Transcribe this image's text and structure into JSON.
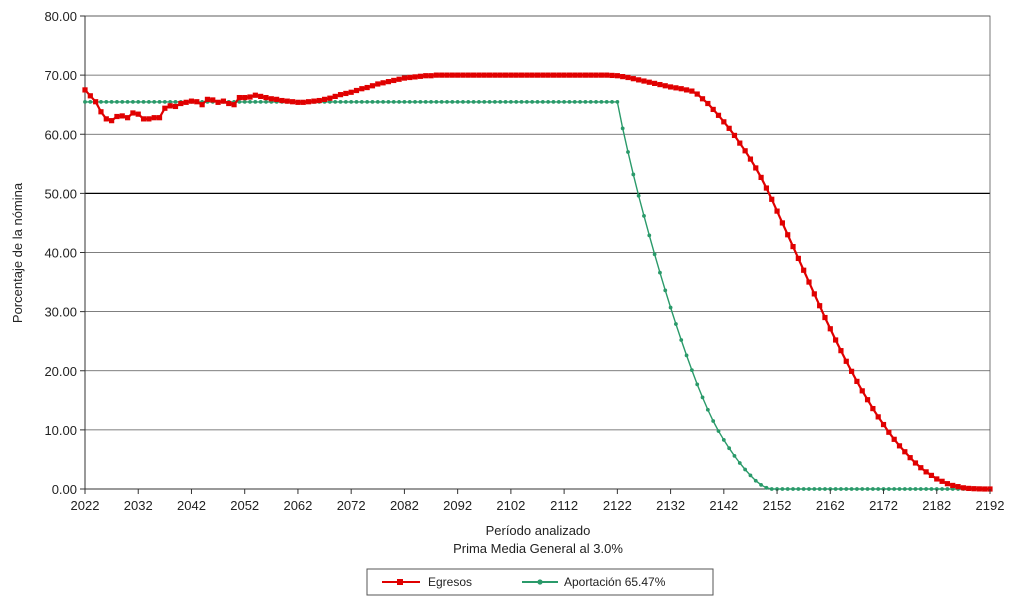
{
  "chart_data": {
    "type": "line",
    "title": "",
    "xlabel": "Período analizado",
    "subtitle": "Prima Media General al 3.0%",
    "ylabel": "Porcentaje de la nómina",
    "xlim": [
      2022,
      2192
    ],
    "ylim": [
      0,
      80
    ],
    "x_ticks": [
      "2022",
      "2032",
      "2042",
      "2052",
      "2062",
      "2072",
      "2082",
      "2092",
      "2102",
      "2112",
      "2122",
      "2132",
      "2142",
      "2152",
      "2162",
      "2172",
      "2182",
      "2192"
    ],
    "y_ticks": [
      "0.00",
      "10.00",
      "20.00",
      "30.00",
      "40.00",
      "50.00",
      "60.00",
      "70.00",
      "80.00"
    ],
    "grid": "horizontal",
    "legend_position": "bottom",
    "series": [
      {
        "name": "Egresos",
        "color": "#e00000",
        "marker": "square",
        "points": [
          [
            2022,
            67.5
          ],
          [
            2023,
            66.5
          ],
          [
            2024,
            65.5
          ],
          [
            2025,
            63.8
          ],
          [
            2026,
            62.6
          ],
          [
            2027,
            62.3
          ],
          [
            2028,
            63.0
          ],
          [
            2029,
            63.1
          ],
          [
            2030,
            62.8
          ],
          [
            2031,
            63.6
          ],
          [
            2032,
            63.4
          ],
          [
            2033,
            62.6
          ],
          [
            2034,
            62.6
          ],
          [
            2035,
            62.8
          ],
          [
            2036,
            62.8
          ],
          [
            2037,
            64.4
          ],
          [
            2038,
            64.8
          ],
          [
            2039,
            64.7
          ],
          [
            2040,
            65.2
          ],
          [
            2041,
            65.4
          ],
          [
            2042,
            65.6
          ],
          [
            2043,
            65.5
          ],
          [
            2044,
            65.0
          ],
          [
            2045,
            65.9
          ],
          [
            2046,
            65.8
          ],
          [
            2047,
            65.4
          ],
          [
            2048,
            65.6
          ],
          [
            2049,
            65.2
          ],
          [
            2050,
            65.0
          ],
          [
            2051,
            66.2
          ],
          [
            2052,
            66.2
          ],
          [
            2053,
            66.3
          ],
          [
            2054,
            66.6
          ],
          [
            2055,
            66.4
          ],
          [
            2056,
            66.2
          ],
          [
            2057,
            66.0
          ],
          [
            2058,
            65.9
          ],
          [
            2059,
            65.7
          ],
          [
            2060,
            65.6
          ],
          [
            2061,
            65.5
          ],
          [
            2062,
            65.4
          ],
          [
            2063,
            65.4
          ],
          [
            2064,
            65.5
          ],
          [
            2065,
            65.6
          ],
          [
            2066,
            65.7
          ],
          [
            2067,
            65.9
          ],
          [
            2068,
            66.1
          ],
          [
            2069,
            66.4
          ],
          [
            2070,
            66.7
          ],
          [
            2071,
            66.9
          ],
          [
            2072,
            67.1
          ],
          [
            2073,
            67.4
          ],
          [
            2074,
            67.7
          ],
          [
            2075,
            67.9
          ],
          [
            2076,
            68.2
          ],
          [
            2077,
            68.5
          ],
          [
            2078,
            68.7
          ],
          [
            2079,
            68.9
          ],
          [
            2080,
            69.1
          ],
          [
            2081,
            69.3
          ],
          [
            2082,
            69.5
          ],
          [
            2083,
            69.6
          ],
          [
            2084,
            69.7
          ],
          [
            2085,
            69.8
          ],
          [
            2086,
            69.9
          ],
          [
            2087,
            69.9
          ],
          [
            2088,
            70.0
          ],
          [
            2089,
            70.0
          ],
          [
            2090,
            70.0
          ],
          [
            2092,
            70.0
          ],
          [
            2096,
            70.0
          ],
          [
            2100,
            70.0
          ],
          [
            2104,
            70.0
          ],
          [
            2108,
            70.0
          ],
          [
            2112,
            70.0
          ],
          [
            2116,
            70.0
          ],
          [
            2120,
            70.0
          ],
          [
            2122,
            69.9
          ],
          [
            2124,
            69.6
          ],
          [
            2126,
            69.2
          ],
          [
            2128,
            68.8
          ],
          [
            2130,
            68.4
          ],
          [
            2132,
            68.0
          ],
          [
            2134,
            67.7
          ],
          [
            2136,
            67.3
          ],
          [
            2137,
            66.8
          ],
          [
            2138,
            66.0
          ],
          [
            2139,
            65.2
          ],
          [
            2140,
            64.2
          ],
          [
            2141,
            63.2
          ],
          [
            2142,
            62.1
          ],
          [
            2143,
            61.0
          ],
          [
            2144,
            59.8
          ],
          [
            2145,
            58.5
          ],
          [
            2146,
            57.2
          ],
          [
            2147,
            55.8
          ],
          [
            2148,
            54.3
          ],
          [
            2149,
            52.7
          ],
          [
            2150,
            50.9
          ],
          [
            2151,
            49.0
          ],
          [
            2152,
            47.0
          ],
          [
            2153,
            45.0
          ],
          [
            2154,
            43.0
          ],
          [
            2155,
            41.0
          ],
          [
            2156,
            39.0
          ],
          [
            2157,
            37.0
          ],
          [
            2158,
            35.0
          ],
          [
            2159,
            33.0
          ],
          [
            2160,
            31.0
          ],
          [
            2161,
            29.0
          ],
          [
            2162,
            27.1
          ],
          [
            2163,
            25.2
          ],
          [
            2164,
            23.4
          ],
          [
            2165,
            21.6
          ],
          [
            2166,
            19.9
          ],
          [
            2167,
            18.2
          ],
          [
            2168,
            16.6
          ],
          [
            2169,
            15.1
          ],
          [
            2170,
            13.6
          ],
          [
            2171,
            12.2
          ],
          [
            2172,
            10.9
          ],
          [
            2173,
            9.6
          ],
          [
            2174,
            8.4
          ],
          [
            2175,
            7.3
          ],
          [
            2176,
            6.3
          ],
          [
            2177,
            5.3
          ],
          [
            2178,
            4.4
          ],
          [
            2179,
            3.6
          ],
          [
            2180,
            2.9
          ],
          [
            2181,
            2.3
          ],
          [
            2182,
            1.7
          ],
          [
            2183,
            1.3
          ],
          [
            2184,
            0.9
          ],
          [
            2185,
            0.6
          ],
          [
            2186,
            0.4
          ],
          [
            2187,
            0.2
          ],
          [
            2188,
            0.1
          ],
          [
            2189,
            0.05
          ],
          [
            2190,
            0.02
          ],
          [
            2191,
            0.0
          ],
          [
            2192,
            0.0
          ]
        ]
      },
      {
        "name": "Aportación 65.47%",
        "color": "#2a9a6a",
        "marker": "dot",
        "points": [
          [
            2022,
            65.47
          ],
          [
            2030,
            65.47
          ],
          [
            2040,
            65.47
          ],
          [
            2050,
            65.47
          ],
          [
            2060,
            65.47
          ],
          [
            2070,
            65.47
          ],
          [
            2080,
            65.47
          ],
          [
            2090,
            65.47
          ],
          [
            2100,
            65.47
          ],
          [
            2110,
            65.47
          ],
          [
            2120,
            65.47
          ],
          [
            2122,
            65.47
          ],
          [
            2123,
            61.0
          ],
          [
            2124,
            57.0
          ],
          [
            2125,
            53.2
          ],
          [
            2126,
            49.6
          ],
          [
            2127,
            46.2
          ],
          [
            2128,
            42.9
          ],
          [
            2129,
            39.7
          ],
          [
            2130,
            36.6
          ],
          [
            2131,
            33.6
          ],
          [
            2132,
            30.7
          ],
          [
            2133,
            27.9
          ],
          [
            2134,
            25.2
          ],
          [
            2135,
            22.6
          ],
          [
            2136,
            20.1
          ],
          [
            2137,
            17.7
          ],
          [
            2138,
            15.5
          ],
          [
            2139,
            13.4
          ],
          [
            2140,
            11.5
          ],
          [
            2141,
            9.8
          ],
          [
            2142,
            8.3
          ],
          [
            2143,
            6.9
          ],
          [
            2144,
            5.6
          ],
          [
            2145,
            4.4
          ],
          [
            2146,
            3.3
          ],
          [
            2147,
            2.3
          ],
          [
            2148,
            1.4
          ],
          [
            2149,
            0.7
          ],
          [
            2150,
            0.2
          ],
          [
            2151,
            0.0
          ],
          [
            2160,
            0.0
          ],
          [
            2170,
            0.0
          ],
          [
            2180,
            0.0
          ],
          [
            2192,
            0.0
          ]
        ]
      }
    ]
  }
}
